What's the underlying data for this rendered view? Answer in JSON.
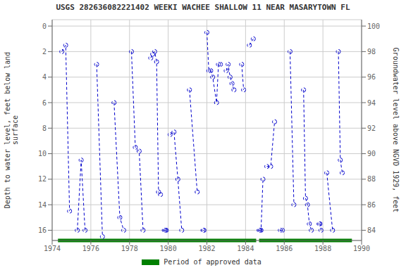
{
  "chart_data": {
    "type": "line",
    "title": "USGS 282636082221402 WEEKI WACHEE SHALLOW 11 NEAR MASARYTOWN FL",
    "ylabel": "Depth to water level, feet below land\nsurface",
    "y2label": "Groundwater level above NGVD 1929, feet",
    "xlim": [
      1974,
      1990
    ],
    "xticks": [
      1974,
      1976,
      1978,
      1980,
      1982,
      1984,
      1986,
      1988,
      1990
    ],
    "ylim": [
      16.8,
      -0.5
    ],
    "yticks": [
      0,
      2,
      4,
      6,
      8,
      10,
      12,
      14,
      16
    ],
    "y2lim": [
      83.2,
      100.5
    ],
    "y2ticks": [
      84,
      86,
      88,
      90,
      92,
      94,
      96,
      98,
      100
    ],
    "grid": true,
    "legend": "bottom",
    "series": [
      {
        "color": "#0000cc",
        "line_style": "dashed",
        "marker": "circle",
        "x": [
          1974.5,
          1974.7,
          1974.9
        ],
        "values": [
          2.0,
          1.5,
          14.5
        ]
      },
      {
        "color": "#0000cc",
        "line_style": "dashed",
        "marker": "circle",
        "x": [
          1975.3,
          1975.5,
          1975.7
        ],
        "values": [
          16.0,
          10.5,
          16.0
        ]
      },
      {
        "color": "#0000cc",
        "line_style": "dashed",
        "marker": "circle",
        "x": [
          1976.3,
          1976.6
        ],
        "values": [
          3.0,
          16.5
        ]
      },
      {
        "color": "#0000cc",
        "line_style": "dashed",
        "marker": "circle",
        "x": [
          1977.2,
          1977.5,
          1977.7
        ],
        "values": [
          6.0,
          15.0,
          16.0
        ]
      },
      {
        "color": "#0000cc",
        "line_style": "dashed",
        "marker": "circle",
        "x": [
          1978.1,
          1978.3,
          1978.5,
          1978.7
        ],
        "values": [
          2.0,
          9.5,
          9.8,
          16.0
        ]
      },
      {
        "color": "#0000cc",
        "line_style": "dashed",
        "marker": "circle",
        "x": [
          1979.1,
          1979.2,
          1979.3,
          1979.4,
          1979.5,
          1979.6
        ],
        "values": [
          2.5,
          2.2,
          2.0,
          2.8,
          13.0,
          13.2
        ]
      },
      {
        "color": "#0000cc",
        "line_style": "dashed",
        "marker": "circle",
        "x": [
          1979.8,
          1979.85,
          1979.9
        ],
        "values": [
          16.0,
          16.0,
          16.0
        ]
      },
      {
        "color": "#0000cc",
        "line_style": "dashed",
        "marker": "circle",
        "x": [
          1980.1,
          1980.3,
          1980.5,
          1980.7
        ],
        "values": [
          8.5,
          8.3,
          12.0,
          16.0
        ]
      },
      {
        "color": "#0000cc",
        "line_style": "dashed",
        "marker": "circle",
        "x": [
          1981.1,
          1981.5
        ],
        "values": [
          5.0,
          13.0
        ]
      },
      {
        "color": "#0000cc",
        "line_style": "dashed",
        "marker": "circle",
        "x": [
          1981.8,
          1981.85
        ],
        "values": [
          16.0,
          16.0
        ]
      },
      {
        "color": "#0000cc",
        "line_style": "dashed",
        "marker": "circle",
        "x": [
          1982.0,
          1982.1,
          1982.2,
          1982.3,
          1982.5,
          1982.6,
          1982.7
        ],
        "values": [
          0.5,
          3.5,
          3.5,
          4.0,
          6.0,
          3.0,
          3.0
        ]
      },
      {
        "color": "#0000cc",
        "line_style": "dashed",
        "marker": "circle",
        "x": [
          1983.0,
          1983.1,
          1983.2,
          1983.3,
          1983.4
        ],
        "values": [
          3.5,
          3.0,
          4.0,
          4.5,
          5.0
        ]
      },
      {
        "color": "#0000cc",
        "line_style": "dashed",
        "marker": "circle",
        "x": [
          1983.8,
          1983.9
        ],
        "values": [
          3.0,
          5.0
        ]
      },
      {
        "color": "#0000cc",
        "line_style": "dashed",
        "marker": "circle",
        "x": [
          1984.2,
          1984.4
        ],
        "values": [
          1.5,
          1.0
        ]
      },
      {
        "color": "#0000cc",
        "line_style": "dashed",
        "marker": "circle",
        "x": [
          1984.7,
          1984.75,
          1984.8,
          1984.9
        ],
        "values": [
          16.0,
          16.0,
          16.0,
          12.0
        ]
      },
      {
        "color": "#0000cc",
        "line_style": "dashed",
        "marker": "circle",
        "x": [
          1985.1,
          1985.3,
          1985.5
        ],
        "values": [
          11.0,
          11.0,
          7.5
        ]
      },
      {
        "color": "#0000cc",
        "line_style": "dashed",
        "marker": "circle",
        "x": [
          1985.8,
          1985.9
        ],
        "values": [
          16.0,
          16.0
        ]
      },
      {
        "color": "#0000cc",
        "line_style": "dashed",
        "marker": "circle",
        "x": [
          1986.3,
          1986.5
        ],
        "values": [
          2.0,
          14.0
        ]
      },
      {
        "color": "#0000cc",
        "line_style": "dashed",
        "marker": "circle",
        "x": [
          1987.0,
          1987.1,
          1987.2,
          1987.3,
          1987.4
        ],
        "values": [
          5.0,
          13.5,
          14.0,
          15.5,
          16.0
        ]
      },
      {
        "color": "#0000cc",
        "line_style": "dashed",
        "marker": "circle",
        "x": [
          1987.8,
          1987.85,
          1987.9
        ],
        "values": [
          15.5,
          15.5,
          16.0
        ]
      },
      {
        "color": "#0000cc",
        "line_style": "dashed",
        "marker": "circle",
        "x": [
          1988.2,
          1988.5
        ],
        "values": [
          11.5,
          16.0
        ]
      },
      {
        "color": "#0000cc",
        "line_style": "dashed",
        "marker": "circle",
        "x": [
          1988.8,
          1988.9,
          1989.0
        ],
        "values": [
          2.0,
          10.5,
          11.5
        ]
      },
      {
        "name": "Period of approved data",
        "type": "span",
        "color": "#008000",
        "x": [
          [
            1974.3,
            1984.55
          ],
          [
            1984.7,
            1989.5
          ]
        ],
        "value": 16.8
      }
    ]
  }
}
